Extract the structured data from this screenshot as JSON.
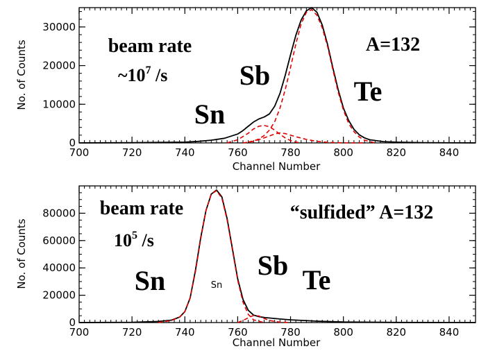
{
  "chart_data": [
    {
      "type": "line",
      "title": "",
      "xlabel": "Channel Number",
      "ylabel": "No. of Counts",
      "xlim": [
        700,
        850
      ],
      "ylim": [
        0,
        35000
      ],
      "xticks": [
        700,
        720,
        740,
        760,
        780,
        800,
        820,
        840
      ],
      "yticks": [
        0,
        10000,
        20000,
        30000
      ],
      "x_minor_step": 2,
      "y_minor_step": 2000,
      "colors": {
        "measured": "#000000",
        "fit": "#e00000"
      },
      "series": [
        {
          "style": "solid",
          "color": "#000000",
          "x": [
            700,
            720,
            740,
            745,
            750,
            755,
            760,
            762,
            764,
            766,
            768,
            770,
            772,
            774,
            776,
            778,
            780,
            782,
            784,
            786,
            788,
            790,
            792,
            794,
            796,
            798,
            800,
            802,
            804,
            806,
            808,
            810,
            815,
            820,
            830,
            850
          ],
          "y": [
            0,
            50,
            200,
            400,
            700,
            1200,
            2300,
            3200,
            4300,
            5400,
            6200,
            6700,
            7500,
            9500,
            12800,
            17500,
            22800,
            27800,
            31800,
            34200,
            35000,
            33800,
            30500,
            25500,
            19500,
            13800,
            9000,
            5800,
            3500,
            2100,
            1300,
            800,
            350,
            200,
            80,
            0
          ]
        },
        {
          "style": "dashed",
          "color": "#e00000",
          "x": [
            756,
            760,
            764,
            766,
            768,
            770,
            772,
            774,
            776,
            778,
            780,
            782,
            784
          ],
          "y": [
            0,
            800,
            2500,
            3600,
            4300,
            4500,
            4200,
            3300,
            2200,
            1300,
            600,
            200,
            0
          ]
        },
        {
          "style": "dashed",
          "color": "#e00000",
          "x": [
            764,
            766,
            768,
            770,
            772,
            774,
            776,
            778,
            780,
            782,
            784,
            786,
            788,
            790,
            792,
            794,
            796,
            798,
            800,
            802,
            804,
            806,
            808,
            812
          ],
          "y": [
            200,
            500,
            1000,
            1900,
            3300,
            5500,
            9000,
            13800,
            19500,
            25500,
            30800,
            33800,
            34500,
            33000,
            29800,
            25000,
            19000,
            13200,
            8500,
            5000,
            2900,
            1500,
            700,
            0
          ]
        },
        {
          "style": "dashed",
          "color": "#e00000",
          "x": [
            762,
            766,
            770,
            774,
            776,
            778,
            782,
            786,
            790,
            794,
            798,
            802,
            808
          ],
          "y": [
            0,
            400,
            1300,
            2300,
            2600,
            2400,
            1600,
            900,
            400,
            150,
            50,
            0,
            0
          ]
        }
      ],
      "annotations": [
        {
          "lines": [
            "beam rate"
          ],
          "size": 28
        },
        {
          "lines": [
            "~10",
            "7",
            " /s"
          ],
          "size": 26,
          "superscript_index": 1
        },
        {
          "lines": [
            "Sn"
          ],
          "size": 40
        },
        {
          "lines": [
            "Sb"
          ],
          "size": 40
        },
        {
          "lines": [
            "Te"
          ],
          "size": 40
        },
        {
          "lines": [
            "A=132"
          ],
          "size": 28
        }
      ]
    },
    {
      "type": "line",
      "title": "",
      "xlabel": "Channel Number",
      "ylabel": "No. of Counts",
      "xlim": [
        700,
        850
      ],
      "ylim": [
        0,
        100000
      ],
      "xticks": [
        700,
        720,
        740,
        760,
        780,
        800,
        820,
        840
      ],
      "yticks": [
        0,
        20000,
        40000,
        60000,
        80000
      ],
      "x_minor_step": 2,
      "y_minor_step": 5000,
      "colors": {
        "measured": "#000000",
        "fit": "#e00000"
      },
      "series": [
        {
          "style": "solid",
          "color": "#000000",
          "x": [
            700,
            720,
            730,
            735,
            738,
            740,
            742,
            744,
            746,
            748,
            750,
            752,
            754,
            756,
            758,
            760,
            762,
            764,
            766,
            768,
            770,
            775,
            780,
            785,
            790,
            800,
            820,
            850
          ],
          "y": [
            0,
            200,
            800,
            1800,
            4000,
            8000,
            18000,
            38000,
            62000,
            82000,
            94000,
            97000,
            92000,
            76000,
            54000,
            32000,
            17000,
            9000,
            5500,
            4300,
            3700,
            2800,
            2000,
            1500,
            1000,
            400,
            100,
            0
          ]
        },
        {
          "style": "dashed",
          "color": "#e00000",
          "x": [
            730,
            735,
            738,
            740,
            742,
            744,
            746,
            748,
            750,
            752,
            754,
            756,
            758,
            760,
            762,
            764,
            766,
            770
          ],
          "y": [
            0,
            1500,
            4000,
            8000,
            18000,
            37000,
            61000,
            82000,
            94000,
            96500,
            91000,
            75000,
            53000,
            31000,
            15000,
            6000,
            2000,
            0
          ]
        },
        {
          "style": "dashed",
          "color": "#e00000",
          "x": [
            760,
            762,
            764,
            766,
            768,
            770,
            772,
            776,
            780
          ],
          "y": [
            0,
            1500,
            3500,
            5200,
            4800,
            3000,
            1500,
            300,
            0
          ]
        }
      ],
      "annotations": [
        {
          "lines": [
            "beam rate"
          ],
          "size": 28
        },
        {
          "lines": [
            "10",
            "5",
            " /s"
          ],
          "size": 26,
          "superscript_index": 1
        },
        {
          "lines": [
            "“sulfided” A=132"
          ],
          "size": 28
        },
        {
          "lines": [
            "Sn"
          ],
          "size": 40
        },
        {
          "lines": [
            "Sn"
          ],
          "size": 13
        },
        {
          "lines": [
            "Sb"
          ],
          "size": 40
        },
        {
          "lines": [
            "Te"
          ],
          "size": 40
        }
      ]
    }
  ]
}
